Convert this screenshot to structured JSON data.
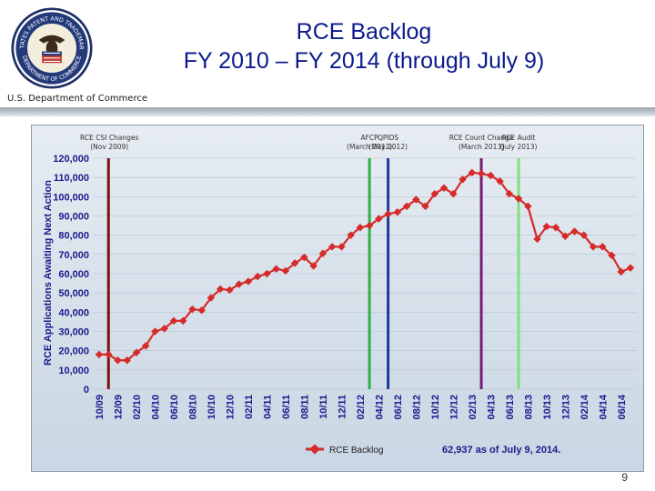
{
  "header": {
    "title_line1": "RCE Backlog",
    "title_line2": "FY 2010 – FY 2014 (through July 9)",
    "department": "U.S. Department of Commerce",
    "seal_text_top": "UNITED STATES PATENT AND TRADEMARK OFFICE",
    "seal_text_bottom": "DEPARTMENT OF COMMERCE"
  },
  "page_number": "9",
  "chart_data": {
    "type": "line",
    "ylabel": "RCE Applications Awaiting Next Action",
    "ylim": [
      0,
      120000
    ],
    "yticks": [
      "0",
      "10,000",
      "20,000",
      "30,000",
      "40,000",
      "50,000",
      "60,000",
      "70,000",
      "80,000",
      "90,000",
      "100,000",
      "110,000",
      "120,000"
    ],
    "x": [
      "10/09",
      "11/09",
      "12/09",
      "01/10",
      "02/10",
      "03/10",
      "04/10",
      "05/10",
      "06/10",
      "07/10",
      "08/10",
      "09/10",
      "10/10",
      "11/10",
      "12/10",
      "01/11",
      "02/11",
      "03/11",
      "04/11",
      "05/11",
      "06/11",
      "07/11",
      "08/11",
      "09/11",
      "10/11",
      "11/11",
      "12/11",
      "01/12",
      "02/12",
      "03/12",
      "04/12",
      "05/12",
      "06/12",
      "07/12",
      "08/12",
      "09/12",
      "10/12",
      "11/12",
      "12/12",
      "01/13",
      "02/13",
      "03/13",
      "04/13",
      "05/13",
      "06/13",
      "07/13",
      "08/13",
      "09/13",
      "10/13",
      "11/13",
      "12/13",
      "01/14",
      "02/14",
      "03/14",
      "04/14",
      "05/14",
      "06/14",
      "07/14"
    ],
    "xtick_labels": [
      "10/09",
      "12/09",
      "02/10",
      "04/10",
      "06/10",
      "08/10",
      "10/10",
      "12/10",
      "02/11",
      "04/11",
      "06/11",
      "08/11",
      "10/11",
      "12/11",
      "02/12",
      "04/12",
      "06/12",
      "08/12",
      "10/12",
      "12/12",
      "02/13",
      "04/13",
      "06/13",
      "08/13",
      "10/13",
      "12/13",
      "02/14",
      "04/14",
      "06/14"
    ],
    "series": [
      {
        "name": "RCE Backlog",
        "color": "#d62b2b",
        "values": [
          18000,
          18000,
          15000,
          15000,
          19000,
          22500,
          30000,
          31500,
          35500,
          35500,
          41500,
          41000,
          47500,
          52000,
          51500,
          54500,
          56000,
          58500,
          60000,
          62500,
          61500,
          65500,
          68500,
          64000,
          70500,
          74000,
          74000,
          80000,
          84000,
          85000,
          88500,
          91000,
          92000,
          95000,
          98500,
          95000,
          101500,
          104500,
          101500,
          109000,
          112500,
          112000,
          111000,
          108000,
          101500,
          99000,
          95000,
          78000,
          84500,
          84000,
          79500,
          82000,
          80000,
          74000,
          74000,
          69500,
          61000,
          63000
        ]
      }
    ],
    "markers": [
      {
        "label": "RCE CSI Changes",
        "date": "(Nov 2009)",
        "x": "11/09",
        "color": "#7a1010"
      },
      {
        "label": "AFCP",
        "date": "(March 2012)",
        "x": "03/12",
        "color": "#2fb04a"
      },
      {
        "label": "QPIDS",
        "date": "(May 2012)",
        "x": "05/12",
        "color": "#1a3a9a"
      },
      {
        "label": "RCE Count Change",
        "date": "(March 2013)",
        "x": "03/13",
        "color": "#7a1a7a"
      },
      {
        "label": "RCE Audit",
        "date": "(July 2013)",
        "x": "07/13",
        "color": "#7fe07f"
      }
    ],
    "legend": "bottom-center",
    "annotation": "62,937 as of July 9, 2014."
  }
}
